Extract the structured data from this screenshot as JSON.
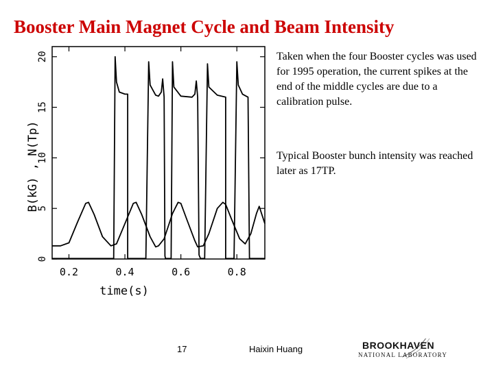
{
  "slide": {
    "title": "Booster Main Magnet Cycle and Beam Intensity",
    "note1": "Taken when the four Booster cycles was used for 1995 operation, the current spikes at the end of the middle cycles are due to a calibration pulse.",
    "note2": "Typical Booster bunch intensity was reached later as 17TP.",
    "page_number": "17",
    "author": "Haixin Huang",
    "logo_top": "BROOKHAVEN",
    "logo_bottom": "NATIONAL LABORATORY"
  },
  "chart_data": {
    "type": "line",
    "title": "",
    "xlabel": "time(s)",
    "ylabel": "B(kG) , N(Tp)",
    "xlim": [
      0.14,
      0.9
    ],
    "ylim": [
      0,
      21
    ],
    "x_ticks": [
      0.2,
      0.4,
      0.6,
      0.8
    ],
    "x_tick_labels": [
      "0.2",
      "0.4",
      "0.6",
      "0.8"
    ],
    "y_ticks": [
      0,
      5,
      10,
      15,
      20
    ],
    "y_tick_labels": [
      "0",
      "5",
      "10",
      "15",
      "20"
    ],
    "grid": false,
    "series": [
      {
        "points": [
          [
            0.14,
            1.3
          ],
          [
            0.17,
            1.3
          ],
          [
            0.2,
            1.6
          ],
          [
            0.23,
            3.6
          ],
          [
            0.26,
            5.5
          ],
          [
            0.27,
            5.6
          ],
          [
            0.29,
            4.4
          ],
          [
            0.32,
            2.2
          ],
          [
            0.35,
            1.3
          ],
          [
            0.37,
            1.5
          ],
          [
            0.4,
            3.5
          ],
          [
            0.43,
            5.5
          ],
          [
            0.44,
            5.6
          ],
          [
            0.46,
            4.4
          ],
          [
            0.49,
            2.2
          ],
          [
            0.51,
            1.2
          ],
          [
            0.52,
            1.3
          ],
          [
            0.54,
            2.0
          ],
          [
            0.57,
            4.5
          ],
          [
            0.59,
            5.6
          ],
          [
            0.6,
            5.5
          ],
          [
            0.62,
            4.0
          ],
          [
            0.65,
            1.8
          ],
          [
            0.66,
            1.2
          ],
          [
            0.68,
            1.3
          ],
          [
            0.7,
            2.5
          ],
          [
            0.73,
            5.0
          ],
          [
            0.75,
            5.6
          ],
          [
            0.76,
            5.4
          ],
          [
            0.78,
            4.0
          ],
          [
            0.81,
            2.0
          ],
          [
            0.83,
            1.5
          ],
          [
            0.85,
            2.5
          ],
          [
            0.87,
            4.5
          ],
          [
            0.88,
            5.2
          ],
          [
            0.9,
            3.5
          ]
        ]
      },
      {
        "points": [
          [
            0.14,
            0.05
          ],
          [
            0.36,
            0.05
          ],
          [
            0.365,
            20.0
          ],
          [
            0.37,
            17.5
          ],
          [
            0.38,
            16.5
          ],
          [
            0.4,
            16.3
          ],
          [
            0.405,
            16.3
          ],
          [
            0.41,
            16.3
          ],
          [
            0.41,
            0.05
          ],
          [
            0.475,
            0.05
          ],
          [
            0.485,
            19.5
          ],
          [
            0.49,
            17.2
          ],
          [
            0.51,
            16.2
          ],
          [
            0.52,
            16.1
          ],
          [
            0.53,
            16.5
          ],
          [
            0.535,
            17.8
          ],
          [
            0.54,
            16.0
          ],
          [
            0.543,
            0.3
          ],
          [
            0.545,
            0.05
          ],
          [
            0.565,
            0.05
          ],
          [
            0.57,
            19.5
          ],
          [
            0.575,
            17.0
          ],
          [
            0.6,
            16.1
          ],
          [
            0.64,
            16.0
          ],
          [
            0.65,
            16.3
          ],
          [
            0.655,
            17.6
          ],
          [
            0.66,
            16.0
          ],
          [
            0.665,
            0.4
          ],
          [
            0.67,
            0.05
          ],
          [
            0.685,
            0.05
          ],
          [
            0.695,
            19.3
          ],
          [
            0.7,
            17.0
          ],
          [
            0.73,
            16.2
          ],
          [
            0.76,
            16.0
          ],
          [
            0.76,
            0.05
          ],
          [
            0.79,
            0.05
          ],
          [
            0.8,
            19.5
          ],
          [
            0.805,
            17.2
          ],
          [
            0.82,
            16.3
          ],
          [
            0.84,
            16.0
          ],
          [
            0.845,
            0.05
          ],
          [
            0.9,
            0.05
          ]
        ]
      }
    ]
  }
}
